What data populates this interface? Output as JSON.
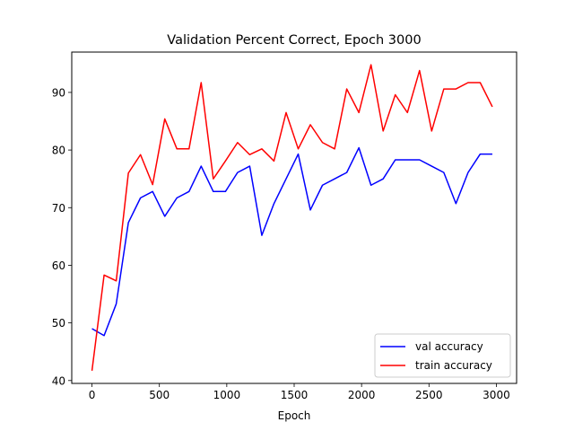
{
  "chart_data": {
    "type": "line",
    "title": "Validation Percent Correct, Epoch 3000",
    "xlabel": "Epoch",
    "ylabel": "",
    "xlim": [
      -150,
      3150
    ],
    "ylim": [
      39.5,
      97.0
    ],
    "xticks": [
      0,
      500,
      1000,
      1500,
      2000,
      2500,
      3000
    ],
    "yticks": [
      40,
      50,
      60,
      70,
      80,
      90
    ],
    "grid": false,
    "legend_position": "lower-right",
    "x": [
      0,
      90,
      180,
      270,
      360,
      450,
      540,
      630,
      720,
      810,
      900,
      990,
      1080,
      1170,
      1260,
      1350,
      1440,
      1530,
      1620,
      1710,
      1800,
      1890,
      1980,
      2070,
      2160,
      2250,
      2340,
      2430,
      2520,
      2610,
      2700,
      2790,
      2880,
      2970
    ],
    "series": [
      {
        "name": "val accuracy",
        "color": "#0000ff",
        "values": [
          49.0,
          47.8,
          53.3,
          67.4,
          71.7,
          72.8,
          68.5,
          71.7,
          72.8,
          77.2,
          72.8,
          72.8,
          76.1,
          77.2,
          65.2,
          70.7,
          75.0,
          79.3,
          69.6,
          73.9,
          75.0,
          76.1,
          80.4,
          73.9,
          75.0,
          78.3,
          78.3,
          78.3,
          77.2,
          76.1,
          70.7,
          76.1,
          79.3,
          79.3
        ]
      },
      {
        "name": "train accuracy",
        "color": "#ff0000",
        "values": [
          41.7,
          58.3,
          57.3,
          76.0,
          79.2,
          74.0,
          85.4,
          80.2,
          80.2,
          91.7,
          75.0,
          78.1,
          81.3,
          79.2,
          80.2,
          78.1,
          86.5,
          80.2,
          84.4,
          81.3,
          80.2,
          90.6,
          86.5,
          94.8,
          83.3,
          89.6,
          86.5,
          93.8,
          83.3,
          90.6,
          90.6,
          91.7,
          91.7,
          87.5
        ]
      }
    ]
  }
}
